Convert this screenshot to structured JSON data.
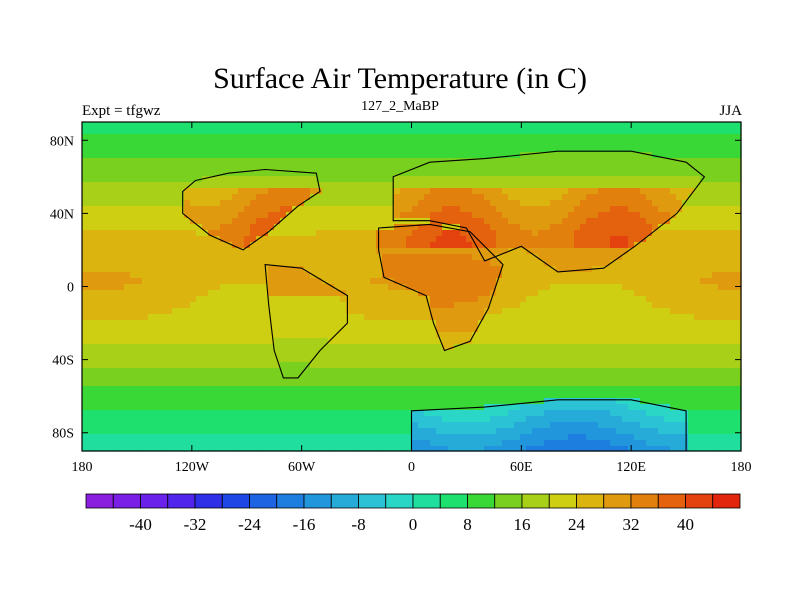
{
  "chart_data": {
    "type": "heatmap",
    "title": "Surface Air Temperature (in C)",
    "left_string": "Expt = tfgwz",
    "center_string": "127_2_MaBP",
    "right_string": "JJA",
    "x_ticks": [
      "180",
      "120W",
      "60W",
      "0",
      "60E",
      "120E",
      "180"
    ],
    "x_tick_values": [
      -180,
      -120,
      -60,
      0,
      60,
      120,
      180
    ],
    "y_ticks": [
      "80N",
      "40N",
      "0",
      "40S",
      "80S"
    ],
    "y_tick_values": [
      80,
      40,
      0,
      -40,
      -80
    ],
    "xlim": [
      -180,
      180
    ],
    "ylim": [
      -90,
      90
    ],
    "colorbar": {
      "levels": [
        -48,
        -44,
        -40,
        -36,
        -32,
        -28,
        -24,
        -20,
        -16,
        -12,
        -8,
        -4,
        0,
        4,
        8,
        12,
        16,
        20,
        24,
        28,
        32,
        36,
        40,
        44,
        48
      ],
      "labels": [
        "-40",
        "-32",
        "-24",
        "-16",
        "-8",
        "0",
        "8",
        "16",
        "24",
        "32",
        "40"
      ],
      "label_values": [
        -40,
        -32,
        -24,
        -16,
        -8,
        0,
        8,
        16,
        24,
        32,
        40
      ],
      "colors": [
        "#8a1fe0",
        "#7a20e6",
        "#6a22ea",
        "#5225ec",
        "#2f2fe8",
        "#1f47e6",
        "#1c64e2",
        "#1e7ee0",
        "#2296dc",
        "#26abd8",
        "#2ac2d4",
        "#2ad6c6",
        "#20de9e",
        "#1ee06e",
        "#3ad836",
        "#7ad01e",
        "#a8d018",
        "#cece12",
        "#dcb410",
        "#e09a10",
        "#e2800e",
        "#e4620e",
        "#e4420e",
        "#e2260e"
      ]
    },
    "summary": {
      "tropics_ocean_C": [
        22,
        28
      ],
      "subtropical_land_max_C": 44,
      "southern_ocean_C": [
        8,
        16
      ],
      "antarctica_min_C": -12
    }
  }
}
